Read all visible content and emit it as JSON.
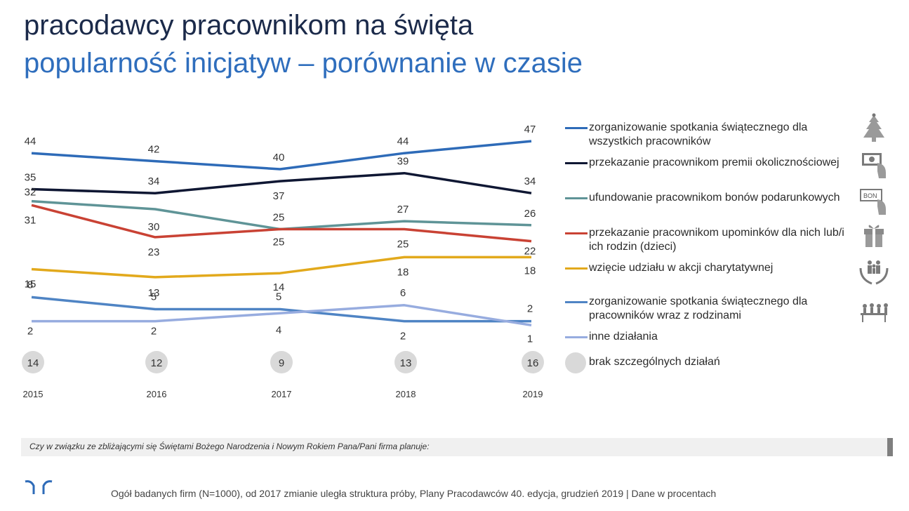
{
  "header": {
    "title": "pracodawcy pracownikom na święta",
    "subtitle": "popularność inicjatyw – porównanie w czasie"
  },
  "chart_data": {
    "type": "line",
    "x": [
      "2015",
      "2016",
      "2017",
      "2018",
      "2019"
    ],
    "series": [
      {
        "name": "zorganizowanie spotkania świątecznego dla wszystkich pracowników",
        "color": "#2e6bb8",
        "values": [
          44,
          42,
          40,
          44,
          47
        ],
        "labels": [
          "44",
          "42",
          "40",
          "44",
          "47"
        ]
      },
      {
        "name": "przekazanie pracownikom premii okolicznościowej",
        "color": "#0f1733",
        "values": [
          35,
          34,
          37,
          39,
          34
        ],
        "labels": [
          "35",
          "34",
          "37",
          "39",
          "34"
        ]
      },
      {
        "name": "ufundowanie pracownikom bonów podarunkowych",
        "color": "#5f9497",
        "values": [
          32,
          30,
          25,
          27,
          26
        ],
        "labels": [
          "32",
          "30",
          "25",
          "27",
          "26"
        ]
      },
      {
        "name": "przekazanie pracownikom upominków dla nich lub/i ich rodzin (dzieci)",
        "color": "#c94234",
        "values": [
          31,
          23,
          25,
          25,
          22
        ],
        "labels": [
          "31",
          "23",
          "25",
          "25",
          "22"
        ]
      },
      {
        "name": "wzięcie udziału w akcji charytatywnej",
        "color": "#e2a91c",
        "values": [
          15,
          13,
          14,
          18,
          18
        ],
        "labels": [
          "15",
          "13",
          "14",
          "18",
          "18"
        ]
      },
      {
        "name": "zorganizowanie spotkania świątecznego dla pracowników wraz z rodzinami",
        "color": "#4f84c4",
        "values": [
          8,
          5,
          5,
          2,
          2
        ],
        "labels": [
          "8",
          "5",
          "5",
          "2",
          "2"
        ]
      },
      {
        "name": "inne działania",
        "color": "#97acdf",
        "values": [
          2,
          2,
          4,
          6,
          1
        ],
        "labels": [
          "2",
          "2",
          "4",
          "6",
          "1"
        ]
      }
    ],
    "extra_series": {
      "name": "brak szczególnych działań",
      "color": "#d9d9d9",
      "values": [
        14,
        12,
        9,
        13,
        16
      ],
      "labels": [
        "14",
        "12",
        "9",
        "13",
        "16"
      ]
    }
  },
  "icons": [
    "christmas-tree-icon",
    "money-hand-icon",
    "voucher-icon",
    "gift-icon",
    "charity-icon",
    "family-table-icon"
  ],
  "question": "Czy w związku ze zbliżającymi się Świętami Bożego Narodzenia i Nowym Rokiem Pana/Pani firma planuje:",
  "footer": {
    "text": "Ogół badanych firm (N=1000), od 2017 zmianie uległa struktura próby, ",
    "source": "Plany Pracodawców 40. edycja, grudzień 2019",
    "suffix": "| Dane w procentach"
  }
}
